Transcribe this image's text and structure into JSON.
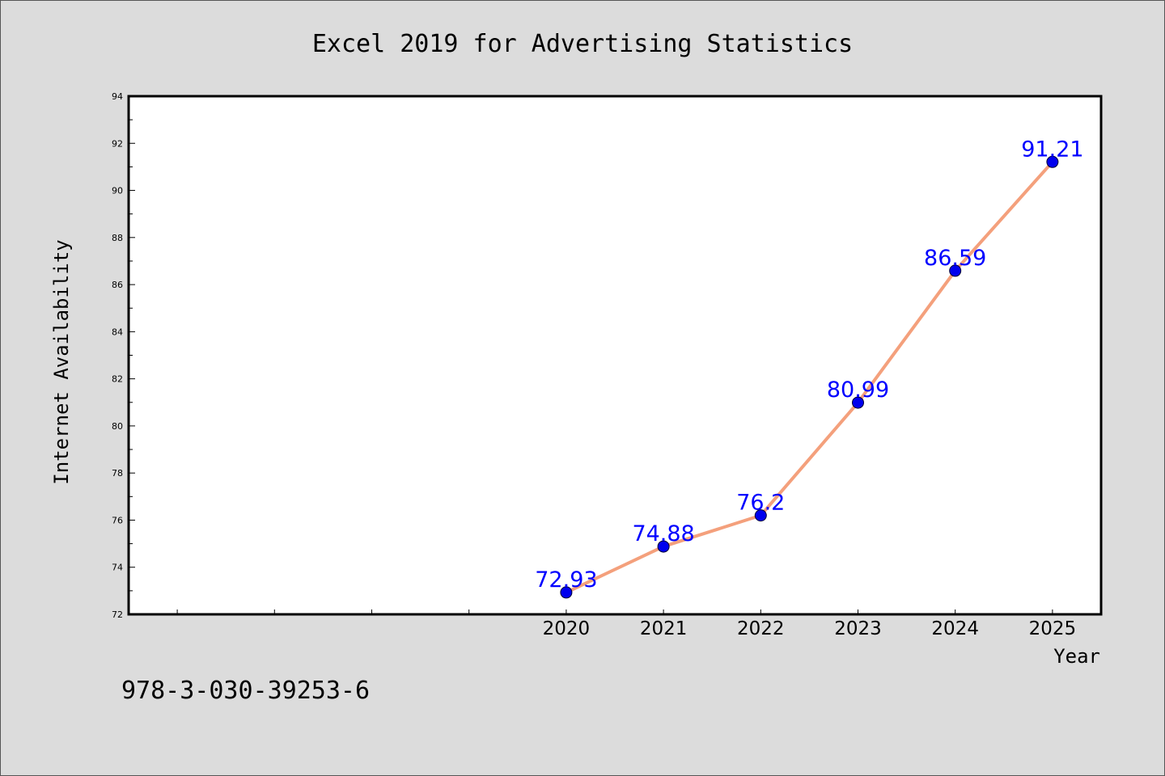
{
  "chart_data": {
    "type": "line",
    "title": "Excel 2019 for Advertising Statistics",
    "xlabel": "Year",
    "ylabel": "Internet Availability",
    "x": [
      2020,
      2021,
      2022,
      2023,
      2024,
      2025
    ],
    "series": [
      {
        "values": [
          72.93,
          74.88,
          76.2,
          80.99,
          86.59,
          91.21
        ],
        "labels": [
          "72.93",
          "74.88",
          "76.2",
          "80.99",
          "86.59",
          "91.21"
        ]
      }
    ],
    "xlim": [
      2015.5,
      2025.5
    ],
    "ylim": [
      72,
      94
    ],
    "yticks": [
      "72",
      "74",
      "76",
      "78",
      "80",
      "82",
      "84",
      "86",
      "88",
      "90",
      "92",
      "94"
    ],
    "xticks": [
      "2020",
      "2021",
      "2022",
      "2023",
      "2024",
      "2025"
    ],
    "grid": false,
    "line_color": "#f4a07c",
    "marker_color": "#0000ee",
    "label_color": "#0000ff",
    "footnote": "978-3-030-39253-6"
  }
}
